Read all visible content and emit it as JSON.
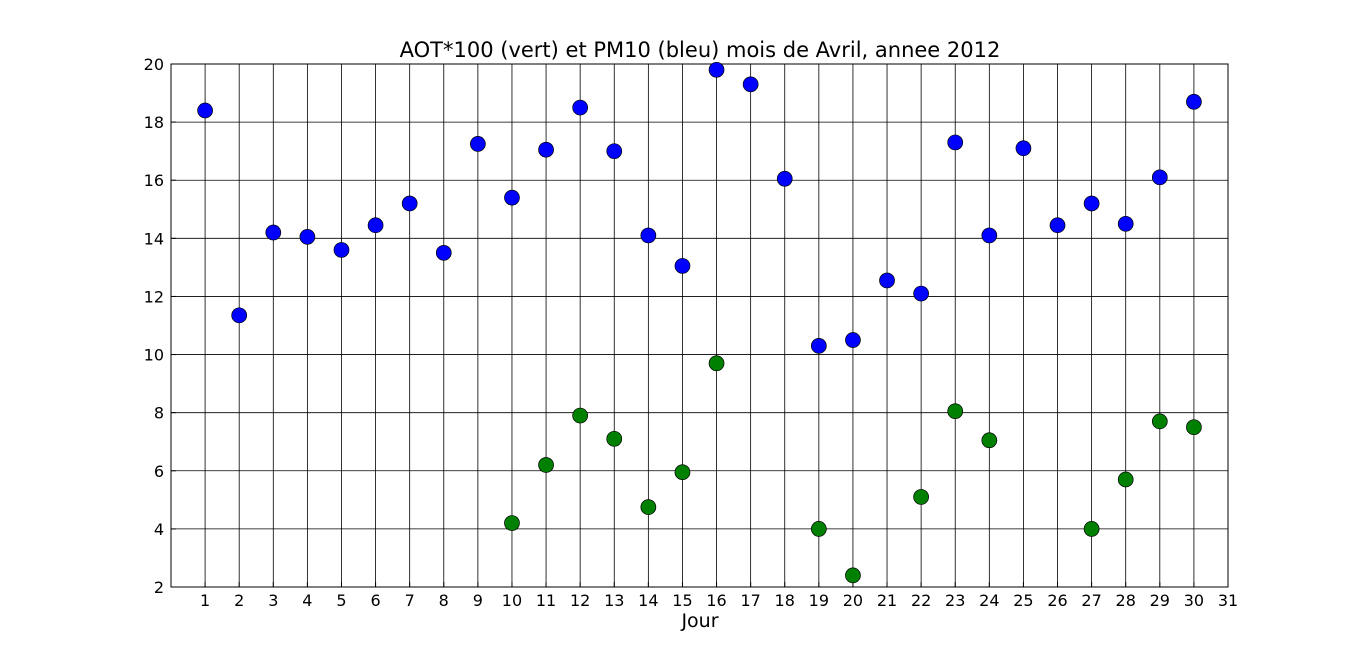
{
  "chart_data": {
    "type": "scatter",
    "title": "AOT*100 (vert) et PM10 (bleu) mois de Avril, annee 2012",
    "xlabel": "Jour",
    "ylabel": "",
    "xlim": [
      0,
      31
    ],
    "ylim": [
      2,
      20
    ],
    "x_ticks": [
      1,
      2,
      3,
      4,
      5,
      6,
      7,
      8,
      9,
      10,
      11,
      12,
      13,
      14,
      15,
      16,
      17,
      18,
      19,
      20,
      21,
      22,
      23,
      24,
      25,
      26,
      27,
      28,
      29,
      30,
      31
    ],
    "y_ticks": [
      2,
      4,
      6,
      8,
      10,
      12,
      14,
      16,
      18,
      20
    ],
    "grid": true,
    "legend": "none",
    "series": [
      {
        "color": "#0000ff",
        "points": [
          [
            1,
            18.4
          ],
          [
            2,
            11.35
          ],
          [
            3,
            14.2
          ],
          [
            4,
            14.05
          ],
          [
            5,
            13.6
          ],
          [
            6,
            14.45
          ],
          [
            7,
            15.2
          ],
          [
            8,
            13.5
          ],
          [
            9,
            17.25
          ],
          [
            10,
            15.4
          ],
          [
            11,
            17.05
          ],
          [
            12,
            18.5
          ],
          [
            13,
            17.0
          ],
          [
            14,
            14.1
          ],
          [
            15,
            13.05
          ],
          [
            16,
            19.8
          ],
          [
            17,
            19.3
          ],
          [
            18,
            16.05
          ],
          [
            19,
            10.3
          ],
          [
            20,
            10.5
          ],
          [
            21,
            12.55
          ],
          [
            22,
            12.1
          ],
          [
            23,
            17.3
          ],
          [
            24,
            14.1
          ],
          [
            25,
            17.1
          ],
          [
            26,
            14.45
          ],
          [
            27,
            15.2
          ],
          [
            28,
            14.5
          ],
          [
            29,
            16.1
          ],
          [
            30,
            18.7
          ]
        ]
      },
      {
        "color": "#008000",
        "points": [
          [
            10,
            4.2
          ],
          [
            11,
            6.2
          ],
          [
            12,
            7.9
          ],
          [
            13,
            7.1
          ],
          [
            14,
            4.75
          ],
          [
            15,
            5.95
          ],
          [
            16,
            9.7
          ],
          [
            19,
            4.0
          ],
          [
            20,
            2.4
          ],
          [
            22,
            5.1
          ],
          [
            23,
            8.05
          ],
          [
            24,
            7.05
          ],
          [
            27,
            4.0
          ],
          [
            28,
            5.7
          ],
          [
            29,
            7.7
          ],
          [
            30,
            7.5
          ]
        ]
      }
    ]
  }
}
